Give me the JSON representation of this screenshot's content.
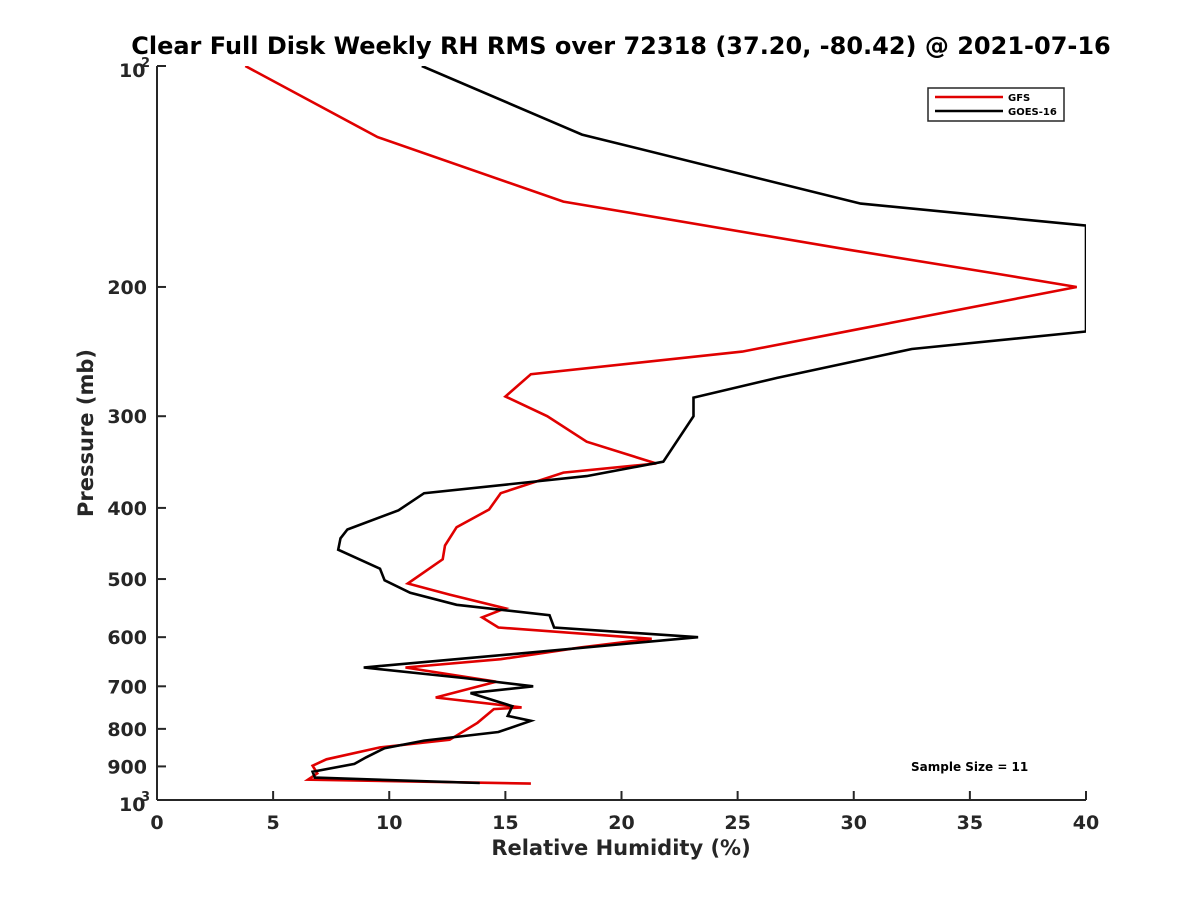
{
  "chart_data": {
    "type": "line",
    "title": "Clear Full Disk Weekly RH RMS over 72318 (37.20, -80.42) @ 2021-07-16",
    "xlabel": "Relative Humidity (%)",
    "ylabel": "Pressure (mb)",
    "xlim": [
      0,
      40
    ],
    "ylim": [
      100,
      1000
    ],
    "y_scale": "log",
    "y_reversed": true,
    "x_ticks": [
      "0",
      "5",
      "10",
      "15",
      "20",
      "25",
      "30",
      "35",
      "40"
    ],
    "y_ticks": [
      {
        "value": 100,
        "base": "10",
        "exp": "2"
      },
      {
        "value": 200,
        "label": "200"
      },
      {
        "value": 300,
        "label": "300"
      },
      {
        "value": 400,
        "label": "400"
      },
      {
        "value": 500,
        "label": "500"
      },
      {
        "value": 600,
        "label": "600"
      },
      {
        "value": 700,
        "label": "700"
      },
      {
        "value": 800,
        "label": "800"
      },
      {
        "value": 900,
        "label": "900"
      },
      {
        "value": 1000,
        "base": "10",
        "exp": "3"
      }
    ],
    "grid": false,
    "legend_position": "top-right",
    "annotation": "Sample Size = 11",
    "series": [
      {
        "name": "GFS",
        "color": "#e00000",
        "points": [
          [
            3.8,
            100
          ],
          [
            9.5,
            125
          ],
          [
            17.5,
            153
          ],
          [
            29.8,
            178
          ],
          [
            36.2,
            192
          ],
          [
            39.6,
            200
          ],
          [
            30.3,
            228
          ],
          [
            25.2,
            245
          ],
          [
            16.1,
            263
          ],
          [
            15.0,
            282
          ],
          [
            16.8,
            300
          ],
          [
            18.5,
            325
          ],
          [
            21.5,
            348
          ],
          [
            17.5,
            358
          ],
          [
            14.8,
            382
          ],
          [
            14.3,
            402
          ],
          [
            12.9,
            425
          ],
          [
            12.4,
            450
          ],
          [
            12.3,
            470
          ],
          [
            10.8,
            507
          ],
          [
            12.6,
            525
          ],
          [
            15.0,
            548
          ],
          [
            14.0,
            564
          ],
          [
            14.7,
            582
          ],
          [
            21.3,
            603
          ],
          [
            18.2,
            620
          ],
          [
            14.8,
            643
          ],
          [
            10.7,
            660
          ],
          [
            14.6,
            690
          ],
          [
            12.0,
            725
          ],
          [
            15.7,
            748
          ],
          [
            14.5,
            752
          ],
          [
            13.8,
            785
          ],
          [
            12.6,
            828
          ],
          [
            9.6,
            848
          ],
          [
            7.3,
            880
          ],
          [
            6.7,
            898
          ],
          [
            6.9,
            920
          ],
          [
            6.5,
            938
          ],
          [
            16.1,
            950
          ]
        ]
      },
      {
        "name": "GOES-16",
        "color": "#000000",
        "points": [
          [
            11.4,
            100
          ],
          [
            18.3,
            124
          ],
          [
            30.3,
            154
          ],
          [
            40.0,
            165
          ],
          [
            40.0,
            230
          ],
          [
            32.5,
            243
          ],
          [
            26.7,
            266
          ],
          [
            23.1,
            283
          ],
          [
            23.1,
            300
          ],
          [
            21.8,
            346
          ],
          [
            18.5,
            362
          ],
          [
            11.5,
            382
          ],
          [
            10.4,
            403
          ],
          [
            8.2,
            428
          ],
          [
            7.9,
            440
          ],
          [
            7.8,
            456
          ],
          [
            9.6,
            484
          ],
          [
            9.8,
            502
          ],
          [
            10.9,
            522
          ],
          [
            12.9,
            542
          ],
          [
            16.9,
            560
          ],
          [
            17.1,
            582
          ],
          [
            23.3,
            600
          ],
          [
            16.0,
            630
          ],
          [
            8.9,
            660
          ],
          [
            13.2,
            682
          ],
          [
            16.2,
            700
          ],
          [
            13.5,
            715
          ],
          [
            15.3,
            745
          ],
          [
            15.1,
            768
          ],
          [
            16.1,
            780
          ],
          [
            14.7,
            808
          ],
          [
            11.5,
            830
          ],
          [
            9.8,
            850
          ],
          [
            9.0,
            875
          ],
          [
            8.5,
            893
          ],
          [
            6.7,
            915
          ],
          [
            6.8,
            932
          ],
          [
            13.9,
            948
          ]
        ]
      }
    ]
  }
}
